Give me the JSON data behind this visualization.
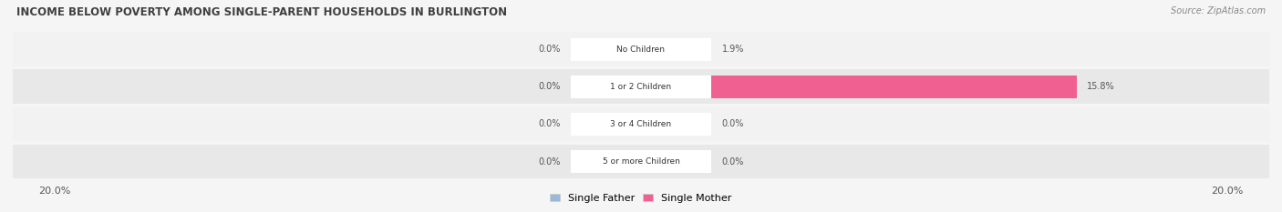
{
  "title": "INCOME BELOW POVERTY AMONG SINGLE-PARENT HOUSEHOLDS IN BURLINGTON",
  "source": "Source: ZipAtlas.com",
  "categories": [
    "No Children",
    "1 or 2 Children",
    "3 or 4 Children",
    "5 or more Children"
  ],
  "single_father": [
    0.0,
    0.0,
    0.0,
    0.0
  ],
  "single_mother": [
    1.9,
    15.8,
    0.0,
    0.0
  ],
  "max_val": 20.0,
  "father_color": "#9ab8d8",
  "mother_color_strong": "#f06090",
  "mother_color_light": "#f4a8c0",
  "row_bg_light": "#f2f2f2",
  "row_bg_dark": "#e8e8e8",
  "fig_bg": "#f5f5f5",
  "label_color": "#555555",
  "title_color": "#404040",
  "figsize": [
    14.06,
    2.33
  ],
  "dpi": 100
}
